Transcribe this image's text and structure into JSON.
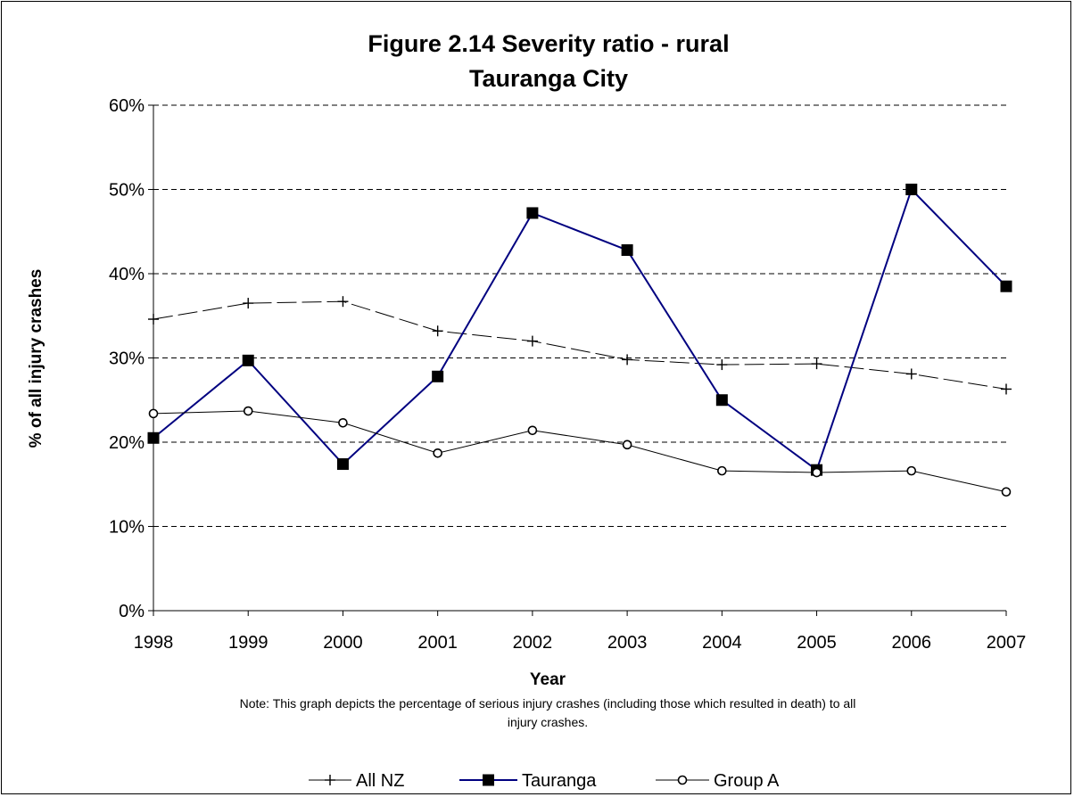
{
  "chart_data": {
    "type": "line",
    "title_line1": "Figure 2.14 Severity ratio - rural",
    "title_line2": "Tauranga City",
    "xlabel": "Year",
    "ylabel": "% of all injury crashes",
    "x": [
      "1998",
      "1999",
      "2000",
      "2001",
      "2002",
      "2003",
      "2004",
      "2005",
      "2006",
      "2007"
    ],
    "ylim": [
      0,
      60
    ],
    "yticks": [
      0,
      10,
      20,
      30,
      40,
      50,
      60
    ],
    "ytick_labels": [
      "0%",
      "10%",
      "20%",
      "30%",
      "40%",
      "50%",
      "60%"
    ],
    "grid": "horizontal dashed",
    "legend_position": "bottom",
    "note_line1": "Note: This graph depicts the percentage of serious injury crashes (including those which resulted in death) to all",
    "note_line2": "injury crashes.",
    "series": [
      {
        "name": "All NZ",
        "values": [
          34.6,
          36.5,
          36.7,
          33.2,
          32.0,
          29.8,
          29.2,
          29.3,
          28.1,
          26.3
        ],
        "color": "#000000",
        "marker": "plus",
        "line": "dashed"
      },
      {
        "name": "Tauranga",
        "values": [
          20.5,
          29.7,
          17.4,
          27.8,
          47.2,
          42.8,
          25.0,
          16.7,
          50.0,
          38.5
        ],
        "color": "#000080",
        "marker": "square",
        "line": "solid"
      },
      {
        "name": "Group A",
        "values": [
          23.4,
          23.7,
          22.3,
          18.7,
          21.4,
          19.7,
          16.6,
          16.4,
          16.6,
          14.1
        ],
        "color": "#000000",
        "marker": "circle",
        "line": "solid"
      }
    ]
  }
}
